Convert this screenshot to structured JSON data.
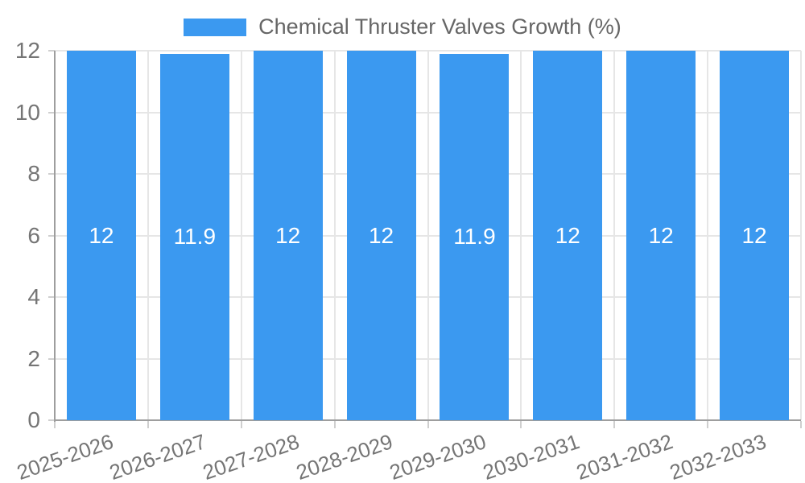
{
  "chart_data": {
    "type": "bar",
    "title": "Chemical Thruster Valves Growth (%)",
    "legend": "Chemical Thruster Valves Growth (%)",
    "legend_position": "top-center",
    "categories": [
      "2025-2026",
      "2026-2027",
      "2027-2028",
      "2028-2029",
      "2029-2030",
      "2030-2031",
      "2031-2032",
      "2032-2033"
    ],
    "values": [
      12,
      11.9,
      12,
      12,
      11.9,
      12,
      12,
      12
    ],
    "value_labels": [
      "12",
      "11.9",
      "12",
      "12",
      "11.9",
      "12",
      "12",
      "12"
    ],
    "xlabel": "",
    "ylabel": "",
    "ylim": [
      0,
      12
    ],
    "yticks": [
      0,
      2,
      4,
      6,
      8,
      10,
      12
    ],
    "grid": true,
    "colors": {
      "bar": "#3B99F0",
      "grid": "#E6E6E6",
      "axis": "#9E9E9E",
      "tick_mark": "#CFCFCF",
      "tick_label": "#757575",
      "legend_label": "#666666",
      "value_label": "#FFFFFF",
      "background": "#FFFFFF"
    }
  }
}
